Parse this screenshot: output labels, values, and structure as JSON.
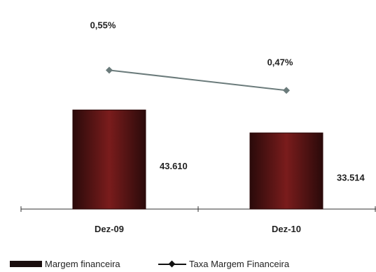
{
  "chart_data": {
    "type": "bar",
    "categories": [
      "Dez-09",
      "Dez-10"
    ],
    "bar_axis_max": 100000,
    "line_axis_max": 0.9,
    "series": [
      {
        "name": "Margem financeira",
        "kind": "bar",
        "values": [
          43610,
          33514
        ],
        "labels": [
          "43.610",
          "33.514"
        ],
        "color": "#5a1414"
      },
      {
        "name": "Taxa Margem Financeira",
        "kind": "line",
        "values": [
          0.55,
          0.47
        ],
        "labels": [
          "0,55%",
          "0,47%"
        ],
        "color": "#6b7b7b"
      }
    ],
    "legend_position": "bottom"
  }
}
